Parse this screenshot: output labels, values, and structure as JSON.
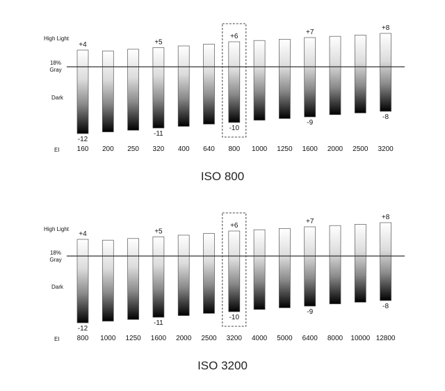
{
  "axis_labels": {
    "highlight": "High Light",
    "gray_line1": "18%",
    "gray_line2": "Gray",
    "dark": "Dark",
    "ei": "EI"
  },
  "colors": {
    "bar_top": "#ffffff",
    "bar_bottom": "#000000",
    "bar_border": "#555555",
    "midline": "#333333",
    "highlight_box": "#444444"
  },
  "chart_data": [
    {
      "type": "bar",
      "title": "ISO 800",
      "categories": [
        "160",
        "200",
        "250",
        "320",
        "400",
        "640",
        "800",
        "1000",
        "1250",
        "1600",
        "2000",
        "2500",
        "3200"
      ],
      "top_stops": [
        4,
        3.8,
        4.2,
        4.6,
        5,
        5.4,
        6,
        6.3,
        6.6,
        7,
        7.3,
        7.6,
        8
      ],
      "bottom_stops": [
        -12,
        -11.7,
        -11.4,
        -11,
        -10.7,
        -10.3,
        -10,
        -9.6,
        -9.3,
        -9,
        -8.6,
        -8.3,
        -8
      ],
      "top_labels": {
        "0": "+4",
        "3": "+5",
        "6": "+6",
        "9": "+7",
        "12": "+8"
      },
      "bottom_labels": {
        "0": "-12",
        "3": "-11",
        "6": "-10",
        "9": "-9",
        "12": "-8"
      },
      "highlight_index": 6,
      "ylim": [
        -12.5,
        9
      ]
    },
    {
      "type": "bar",
      "title": "ISO 3200",
      "categories": [
        "800",
        "1000",
        "1250",
        "1600",
        "2000",
        "2500",
        "3200",
        "4000",
        "5000",
        "6400",
        "8000",
        "10000",
        "12800"
      ],
      "top_stops": [
        4,
        3.8,
        4.2,
        4.6,
        5,
        5.4,
        6,
        6.3,
        6.6,
        7,
        7.3,
        7.6,
        8
      ],
      "bottom_stops": [
        -12,
        -11.7,
        -11.4,
        -11,
        -10.7,
        -10.3,
        -10,
        -9.6,
        -9.3,
        -9,
        -8.6,
        -8.3,
        -8
      ],
      "top_labels": {
        "0": "+4",
        "3": "+5",
        "6": "+6",
        "9": "+7",
        "12": "+8"
      },
      "bottom_labels": {
        "0": "-12",
        "3": "-11",
        "6": "-10",
        "9": "-9",
        "12": "-8"
      },
      "highlight_index": 6,
      "ylim": [
        -12.5,
        9
      ]
    }
  ]
}
